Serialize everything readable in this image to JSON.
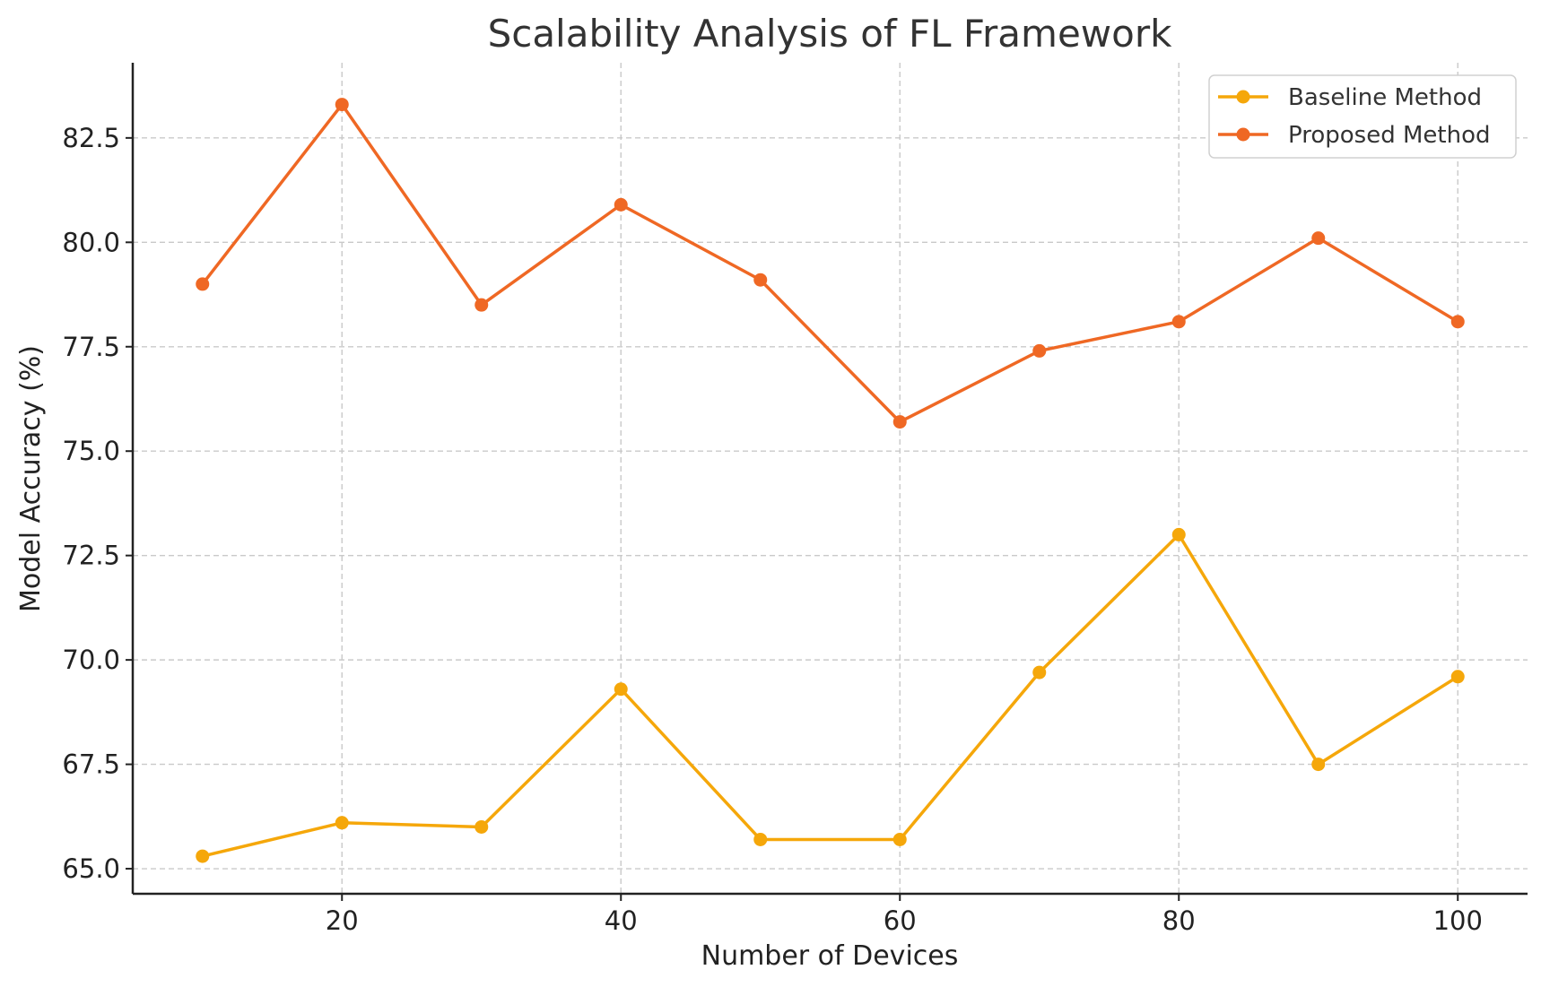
{
  "chart_data": {
    "type": "line",
    "title": "Scalability Analysis of FL Framework",
    "xlabel": "Number of Devices",
    "ylabel": "Model Accuracy (%)",
    "x": [
      10,
      20,
      30,
      40,
      50,
      60,
      70,
      80,
      90,
      100
    ],
    "xlim": [
      5,
      105
    ],
    "ylim": [
      64.4,
      84.3
    ],
    "xticks": [
      20,
      40,
      60,
      80,
      100
    ],
    "yticks": [
      65.0,
      67.5,
      70.0,
      72.5,
      75.0,
      77.5,
      80.0,
      82.5
    ],
    "xtick_labels": [
      "20",
      "40",
      "60",
      "80",
      "100"
    ],
    "ytick_labels": [
      "65.0",
      "67.5",
      "70.0",
      "72.5",
      "75.0",
      "77.5",
      "80.0",
      "82.5"
    ],
    "grid": true,
    "legend_position": "top-right",
    "series": [
      {
        "name": "Baseline Method",
        "color": "#f5a70a",
        "marker": "circle",
        "values": [
          65.3,
          66.1,
          66.0,
          69.3,
          65.7,
          65.7,
          69.7,
          73.0,
          67.5,
          69.6
        ]
      },
      {
        "name": "Proposed Method",
        "color": "#ef6824",
        "marker": "circle",
        "values": [
          79.0,
          83.3,
          78.5,
          80.9,
          79.1,
          75.7,
          77.4,
          78.1,
          80.1,
          78.1
        ]
      }
    ]
  }
}
